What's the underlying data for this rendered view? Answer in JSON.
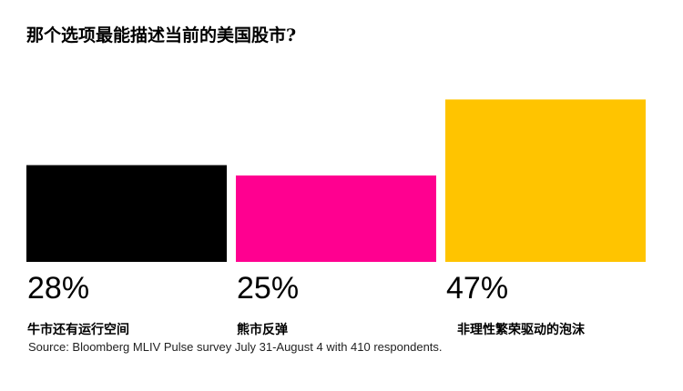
{
  "chart_data": {
    "type": "bar",
    "title": "那个选项最能描述当前的美国股市?",
    "categories": [
      "牛市还有运行空间",
      "熊市反弹",
      "非理性繁荣驱动的泡沫"
    ],
    "values": [
      28,
      25,
      47
    ],
    "value_labels": [
      "28%",
      "25%",
      "47%"
    ],
    "colors": [
      "#000000",
      "#ff0090",
      "#ffc400"
    ],
    "ylim": [
      0,
      50
    ],
    "grid": false,
    "legend": "none",
    "source": "Source: Bloomberg MLIV Pulse survey July 31-August 4 with 410 respondents."
  }
}
